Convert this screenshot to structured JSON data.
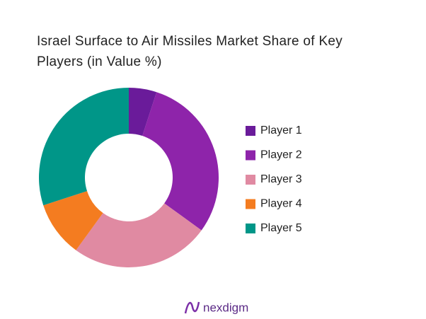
{
  "chart_data": {
    "type": "donut",
    "title": "Israel Surface to Air Missiles Market Share of Key Players (in Value %)",
    "categories": [
      "Player 1",
      "Player 2",
      "Player 3",
      "Player 4",
      "Player 5"
    ],
    "values": [
      5,
      30,
      25,
      10,
      30
    ],
    "colors": [
      "#6a1b9a",
      "#8e24aa",
      "#e08aa2",
      "#f47c20",
      "#009688"
    ],
    "legend": "right",
    "brand": "nexdigm"
  }
}
